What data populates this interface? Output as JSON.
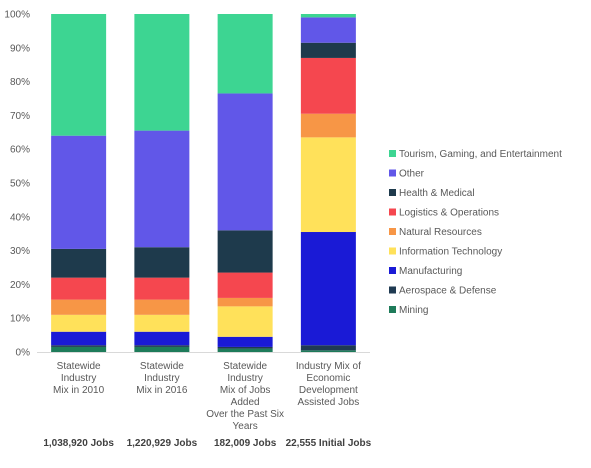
{
  "chart_data": {
    "type": "bar",
    "stacked": true,
    "title": "",
    "xlabel": "",
    "ylabel": "",
    "ylim": [
      0,
      100
    ],
    "y_ticks": [
      "0%",
      "10%",
      "20%",
      "30%",
      "40%",
      "50%",
      "60%",
      "70%",
      "80%",
      "90%",
      "100%"
    ],
    "grid": false,
    "legend_position": "right",
    "categories": [
      [
        "Statewide",
        "Industry",
        "Mix in 2010"
      ],
      [
        "Statewide",
        "Industry",
        "Mix in 2016"
      ],
      [
        "Statewide",
        "Industry",
        "Mix of Jobs",
        "Added",
        "Over the Past Six",
        "Years"
      ],
      [
        "Industry Mix of",
        "Economic",
        "Development",
        "Assisted Jobs"
      ]
    ],
    "totals": [
      "1,038,920 Jobs",
      "1,220,929 Jobs",
      "182,009 Jobs",
      "22,555 Initial Jobs"
    ],
    "series": [
      {
        "name": "Mining",
        "color": "#1e7b5a",
        "values": [
          1.5,
          1.5,
          1.0,
          0.5
        ]
      },
      {
        "name": "Aerospace & Defense",
        "color": "#1f3a52",
        "values": [
          0.5,
          0.5,
          0.5,
          1.5
        ]
      },
      {
        "name": "Manufacturing",
        "color": "#1a1ad6",
        "values": [
          4.0,
          4.0,
          3.0,
          33.5
        ]
      },
      {
        "name": "Information Technology",
        "color": "#ffe15a",
        "values": [
          5.0,
          5.0,
          9.0,
          28.0
        ]
      },
      {
        "name": "Natural Resources",
        "color": "#f79646",
        "values": [
          4.5,
          4.5,
          2.5,
          7.0
        ]
      },
      {
        "name": "Logistics & Operations",
        "color": "#f5474f",
        "values": [
          6.5,
          6.5,
          7.5,
          16.5
        ]
      },
      {
        "name": "Health & Medical",
        "color": "#1e3a4c",
        "values": [
          8.5,
          9.0,
          12.5,
          4.5
        ]
      },
      {
        "name": "Other",
        "color": "#6157e8",
        "values": [
          33.5,
          34.5,
          40.5,
          7.5
        ]
      },
      {
        "name": "Tourism, Gaming, and Entertainment",
        "color": "#3dd592",
        "values": [
          36.0,
          34.5,
          23.5,
          1.0
        ]
      }
    ]
  }
}
